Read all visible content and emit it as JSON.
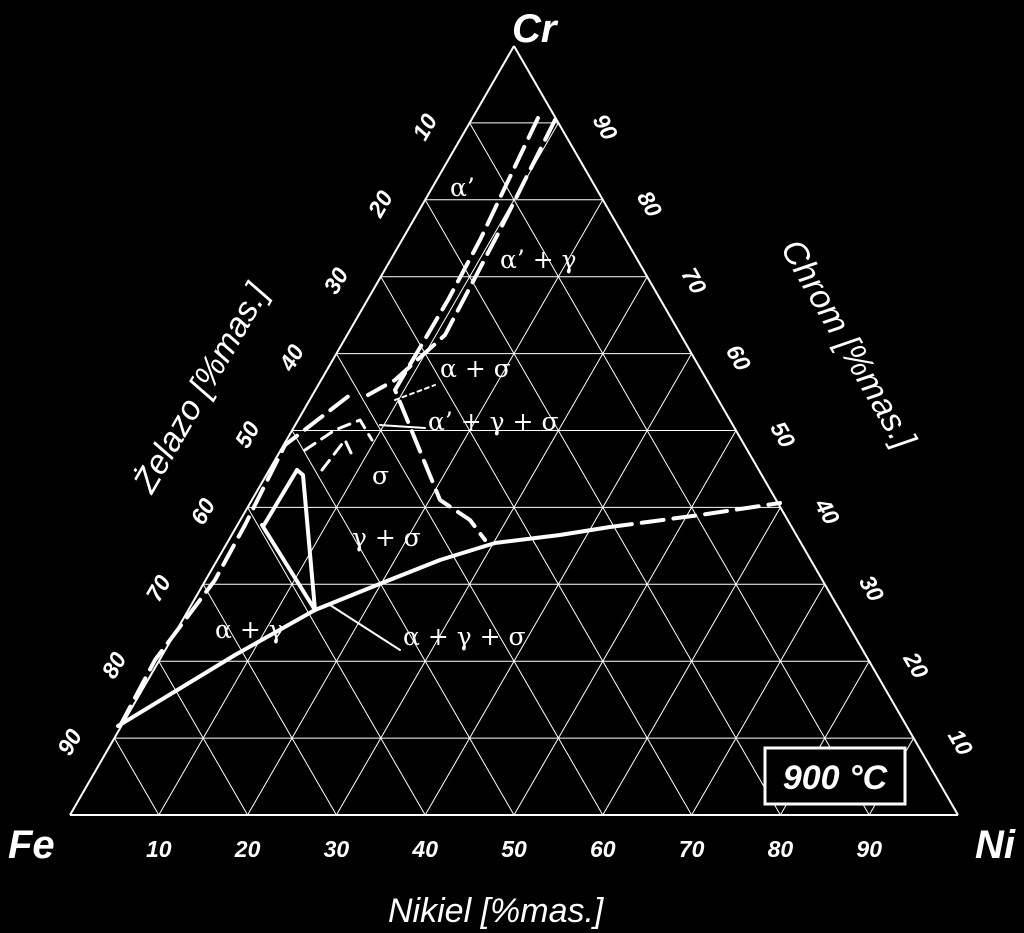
{
  "corners": {
    "top": "Cr",
    "left": "Fe",
    "right": "Ni"
  },
  "axes": {
    "bottom_title": "Nikiel [%mas.]",
    "left_title": "Żelazo [%mas.]",
    "right_title": "Chrom [%mas.]",
    "ticks": [
      "10",
      "20",
      "30",
      "40",
      "50",
      "60",
      "70",
      "80",
      "90"
    ]
  },
  "phase_labels": {
    "alpha_prime": "α’",
    "alpha_prime_gamma": "α’ + γ",
    "alpha_sigma": "α + σ",
    "alpha_prime_gamma_sigma": "α’ + γ + σ",
    "sigma": "σ",
    "gamma_sigma": "γ + σ",
    "alpha_gamma": "α + γ",
    "alpha_gamma_sigma": "α + γ + σ"
  },
  "temperature": "900 °C",
  "colors": {
    "background": "#000000",
    "foreground": "#ffffff"
  }
}
